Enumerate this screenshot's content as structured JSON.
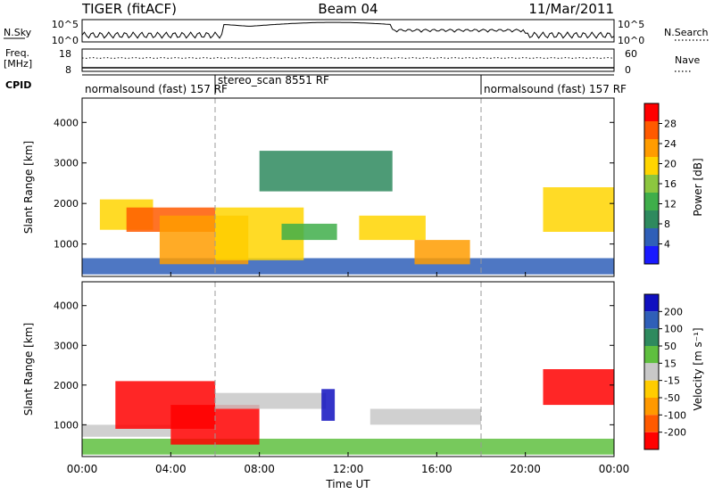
{
  "header": {
    "radar": "TIGER (fitACF)",
    "beam": "Beam 04",
    "date": "11/Mar/2011"
  },
  "top_panels": {
    "nsky_label": "N.Sky",
    "nsky_ticks": [
      "10^5",
      "10^0"
    ],
    "nsearch_label": "N.Search",
    "nsearch_ticks": [
      "10^5",
      "10^0"
    ],
    "freq_label_1": "Freq.",
    "freq_label_2": "[MHz]",
    "freq_ticks": [
      "18",
      "8"
    ],
    "nave_label": "Nave",
    "nave_ticks": [
      "60",
      "0"
    ],
    "cpid_label": "CPID",
    "cpid_segments": [
      {
        "label": "normalsound (fast) 157 RF",
        "start_hr": 0,
        "end_hr": 6
      },
      {
        "label": "stereo_scan 8551 RF",
        "start_hr": 6,
        "end_hr": 18
      },
      {
        "label": "normalsound (fast) 157 RF",
        "start_hr": 18,
        "end_hr": 24
      }
    ]
  },
  "chart_data": [
    {
      "type": "heatmap",
      "quantity": "Power",
      "ylabel": "Slant Range [km]",
      "ylim": [
        200,
        4600
      ],
      "yticks": [
        1000,
        2000,
        3000,
        4000
      ],
      "xlim": [
        0,
        24
      ],
      "colorbar": {
        "label": "Power [dB]",
        "range": [
          0,
          32
        ],
        "ticks": [
          4,
          8,
          12,
          16,
          20,
          24,
          28
        ],
        "colors": [
          "#1a1aff",
          "#2f5fb8",
          "#2e8a5e",
          "#3fae4a",
          "#8cc63f",
          "#ffd500",
          "#ff9c00",
          "#ff5a00",
          "#ff0000"
        ]
      },
      "echo_regions": [
        {
          "t0": 0.0,
          "t1": 24.0,
          "r0": 250,
          "r1": 650,
          "level": 6
        },
        {
          "t0": 0.8,
          "t1": 3.2,
          "r0": 1350,
          "r1": 2100,
          "level": 18
        },
        {
          "t0": 2.0,
          "t1": 6.0,
          "r0": 1300,
          "r1": 1900,
          "level": 26
        },
        {
          "t0": 3.5,
          "t1": 7.5,
          "r0": 500,
          "r1": 1700,
          "level": 24
        },
        {
          "t0": 6.0,
          "t1": 10.0,
          "r0": 600,
          "r1": 1900,
          "level": 20
        },
        {
          "t0": 9.0,
          "t1": 11.5,
          "r0": 1100,
          "r1": 1500,
          "level": 14
        },
        {
          "t0": 12.5,
          "t1": 15.5,
          "r0": 1100,
          "r1": 1700,
          "level": 18
        },
        {
          "t0": 15.0,
          "t1": 17.5,
          "r0": 500,
          "r1": 1100,
          "level": 24
        },
        {
          "t0": 8.0,
          "t1": 14.0,
          "r0": 2300,
          "r1": 3300,
          "level": 8
        },
        {
          "t0": 20.8,
          "t1": 24.0,
          "r0": 1300,
          "r1": 2400,
          "level": 20
        }
      ]
    },
    {
      "type": "heatmap",
      "quantity": "Velocity",
      "ylabel": "Slant Range [km]",
      "xlabel": "Time UT",
      "ylim": [
        200,
        4600
      ],
      "yticks": [
        1000,
        2000,
        3000,
        4000
      ],
      "xlim": [
        0,
        24
      ],
      "xticks": [
        "00:00",
        "04:00",
        "08:00",
        "12:00",
        "16:00",
        "20:00",
        "00:00"
      ],
      "colorbar": {
        "label": "Velocity [m s-1]",
        "range": [
          -250,
          250
        ],
        "ticks": [
          200,
          100,
          50,
          15,
          -15,
          -50,
          -100,
          -200
        ],
        "colors": [
          "#1010c0",
          "#2f5fb8",
          "#2e8a5e",
          "#5fbf3f",
          "#c8c8c8",
          "#ffcc00",
          "#ff9900",
          "#ff5a00",
          "#ff0000"
        ]
      },
      "echo_regions": [
        {
          "t0": 0.0,
          "t1": 24.0,
          "r0": 250,
          "r1": 650,
          "level": 30
        },
        {
          "t0": 0.0,
          "t1": 4.0,
          "r0": 700,
          "r1": 1000,
          "level": 0
        },
        {
          "t0": 1.5,
          "t1": 6.0,
          "r0": 900,
          "r1": 2100,
          "level": -220
        },
        {
          "t0": 4.0,
          "t1": 8.0,
          "r0": 500,
          "r1": 1500,
          "level": -200
        },
        {
          "t0": 6.0,
          "t1": 11.0,
          "r0": 1400,
          "r1": 1800,
          "level": 0
        },
        {
          "t0": 10.8,
          "t1": 11.4,
          "r0": 1100,
          "r1": 1900,
          "level": 220
        },
        {
          "t0": 13.0,
          "t1": 18.0,
          "r0": 1000,
          "r1": 1400,
          "level": 0
        },
        {
          "t0": 20.8,
          "t1": 24.0,
          "r0": 1500,
          "r1": 2400,
          "level": -200
        }
      ]
    }
  ],
  "labels": {
    "power_cb": "Power [dB]",
    "velocity_cb": "Velocity [m s⁻¹]",
    "ylabel": "Slant Range [km]",
    "xlabel": "Time UT"
  }
}
